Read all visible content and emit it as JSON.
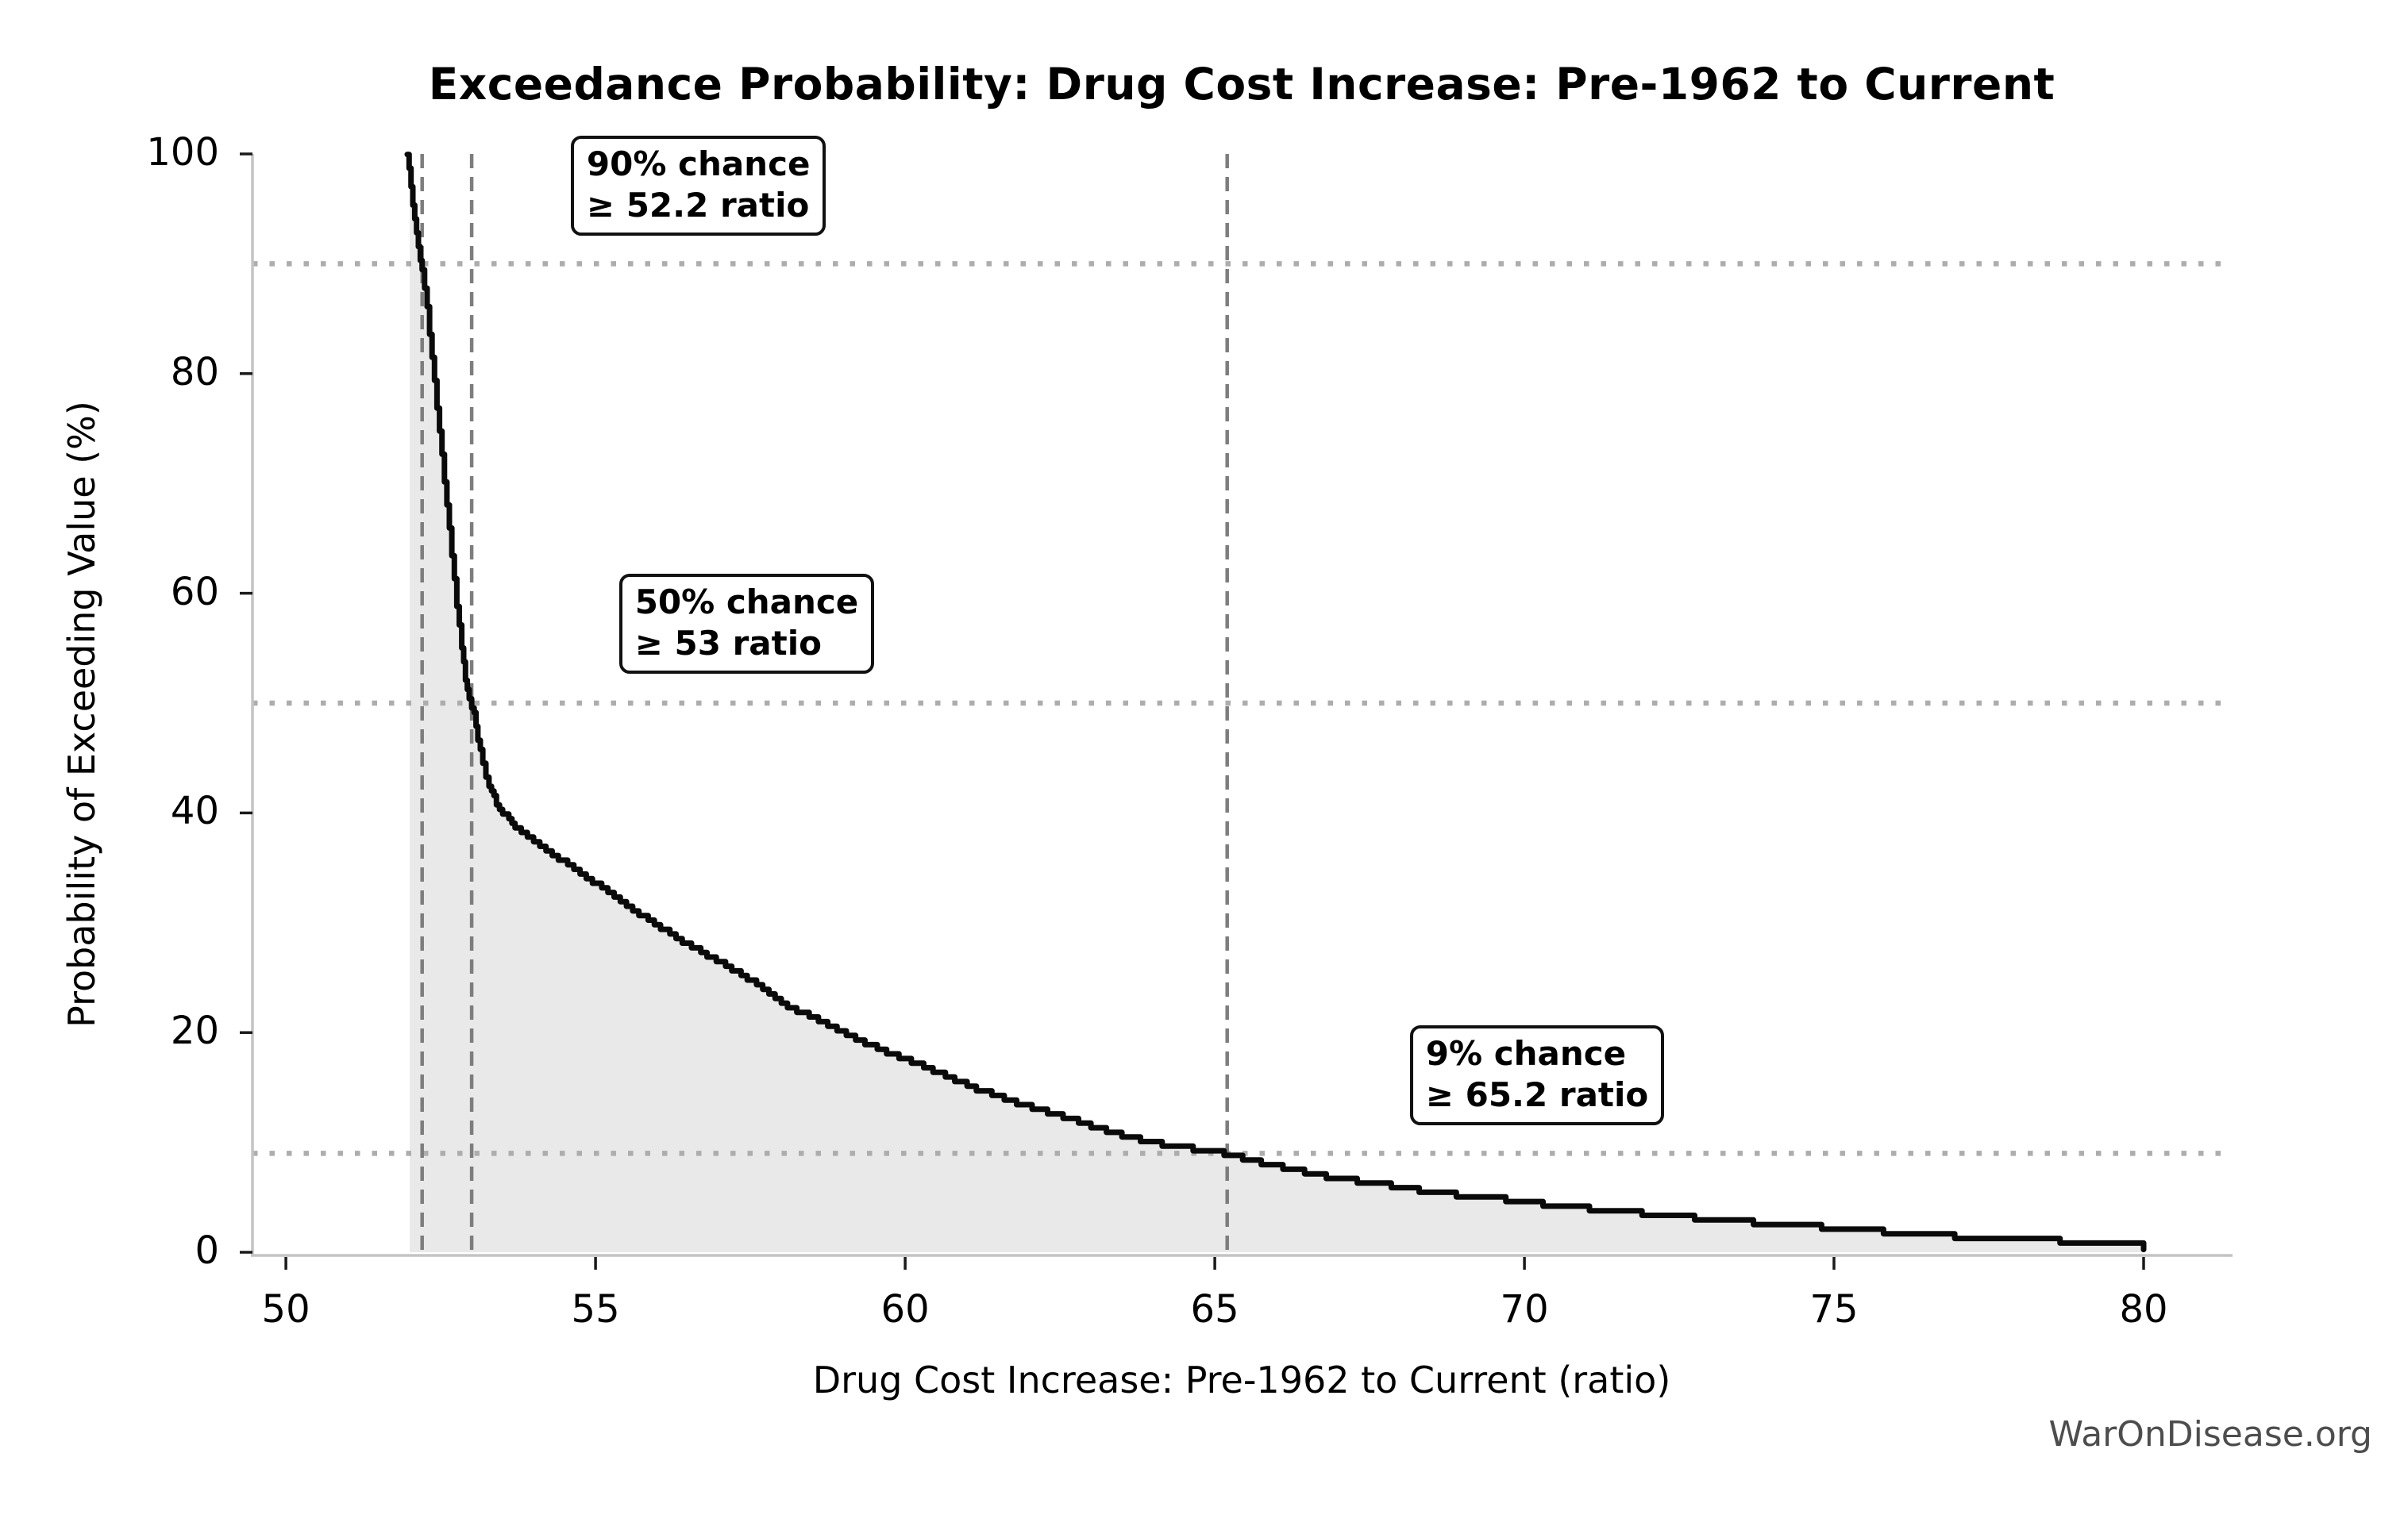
{
  "page": {
    "watermark": "WarOnDisease.org"
  },
  "chart_data": {
    "type": "area",
    "title": "Exceedance Probability: Drug Cost Increase: Pre-1962 to Current",
    "xlabel": "Drug Cost Increase: Pre-1962 to Current (ratio)",
    "ylabel": "Probability of Exceeding Value (%)",
    "xlim": [
      49.46,
      81.41
    ],
    "ylim": [
      0,
      100
    ],
    "xticks": [
      50,
      55,
      60,
      65,
      70,
      75,
      80
    ],
    "yticks": [
      0,
      20,
      40,
      60,
      80,
      100
    ],
    "grid": {
      "horizontal_dotted_at_percent": [
        90,
        50,
        9
      ]
    },
    "vertical_dashed_at_ratio": [
      52.2,
      53,
      65.2
    ],
    "legend": "none",
    "series": [
      {
        "name": "exceedance_probability",
        "x_units": "ratio",
        "y_units": "percent",
        "fill_to_zero": true,
        "fill_left_edge_ratio": 52.0,
        "points": [
          [
            51.96,
            100
          ],
          [
            52.02,
            97
          ],
          [
            52.08,
            94
          ],
          [
            52.14,
            91.5
          ],
          [
            52.2,
            89.5
          ],
          [
            52.28,
            86
          ],
          [
            52.36,
            81.5
          ],
          [
            52.44,
            77
          ],
          [
            52.52,
            72.5
          ],
          [
            52.6,
            68
          ],
          [
            52.68,
            63.5
          ],
          [
            52.76,
            59
          ],
          [
            52.84,
            55
          ],
          [
            52.9,
            52.2
          ],
          [
            52.96,
            50.5
          ],
          [
            53.04,
            49
          ],
          [
            53.1,
            46.8
          ],
          [
            53.18,
            44.4
          ],
          [
            53.28,
            42.4
          ],
          [
            53.4,
            40.9
          ],
          [
            53.55,
            39.7
          ],
          [
            53.7,
            38.8
          ],
          [
            53.9,
            37.9
          ],
          [
            54.1,
            37.1
          ],
          [
            54.35,
            36.1
          ],
          [
            54.6,
            35.1
          ],
          [
            54.85,
            34.2
          ],
          [
            55.1,
            33.2
          ],
          [
            55.35,
            32.2
          ],
          [
            55.6,
            31.2
          ],
          [
            55.85,
            30.3
          ],
          [
            56.1,
            29.4
          ],
          [
            56.35,
            28.5
          ],
          [
            56.6,
            27.7
          ],
          [
            56.85,
            26.9
          ],
          [
            57.1,
            26.1
          ],
          [
            57.35,
            25.3
          ],
          [
            57.6,
            24.5
          ],
          [
            57.85,
            23.5
          ],
          [
            58.1,
            22.4
          ],
          [
            58.35,
            21.8
          ],
          [
            58.6,
            21.1
          ],
          [
            58.85,
            20.4
          ],
          [
            59.1,
            19.7
          ],
          [
            59.35,
            19.1
          ],
          [
            59.6,
            18.5
          ],
          [
            59.85,
            17.9
          ],
          [
            60.1,
            17.4
          ],
          [
            60.35,
            16.8
          ],
          [
            60.6,
            16.2
          ],
          [
            60.85,
            15.6
          ],
          [
            61.1,
            15.0
          ],
          [
            61.35,
            14.5
          ],
          [
            61.6,
            14.0
          ],
          [
            61.85,
            13.5
          ],
          [
            62.1,
            13.1
          ],
          [
            62.35,
            12.7
          ],
          [
            62.6,
            12.3
          ],
          [
            62.85,
            11.8
          ],
          [
            63.1,
            11.3
          ],
          [
            63.35,
            10.9
          ],
          [
            63.6,
            10.5
          ],
          [
            63.85,
            10.2
          ],
          [
            64.1,
            9.9
          ],
          [
            64.35,
            9.65
          ],
          [
            64.6,
            9.45
          ],
          [
            64.85,
            9.2
          ],
          [
            65.2,
            9.0
          ],
          [
            65.45,
            8.6
          ],
          [
            65.7,
            8.2
          ],
          [
            65.95,
            7.9
          ],
          [
            66.2,
            7.6
          ],
          [
            66.45,
            7.3
          ],
          [
            66.7,
            7.0
          ],
          [
            66.95,
            6.75
          ],
          [
            67.2,
            6.55
          ],
          [
            67.45,
            6.35
          ],
          [
            67.7,
            6.15
          ],
          [
            67.95,
            6.0
          ],
          [
            68.2,
            5.75
          ],
          [
            68.45,
            5.5
          ],
          [
            68.7,
            5.35
          ],
          [
            68.95,
            5.2
          ],
          [
            69.3,
            5.0
          ],
          [
            69.65,
            4.85
          ],
          [
            70.0,
            4.6
          ],
          [
            70.4,
            4.3
          ],
          [
            70.8,
            4.1
          ],
          [
            71.2,
            3.9
          ],
          [
            71.6,
            3.7
          ],
          [
            72.0,
            3.5
          ],
          [
            72.4,
            3.3
          ],
          [
            72.8,
            3.1
          ],
          [
            73.2,
            2.9
          ],
          [
            73.6,
            2.75
          ],
          [
            74.0,
            2.6
          ],
          [
            74.4,
            2.45
          ],
          [
            74.8,
            2.3
          ],
          [
            75.2,
            2.1
          ],
          [
            75.6,
            1.95
          ],
          [
            76.0,
            1.8
          ],
          [
            76.4,
            1.65
          ],
          [
            76.8,
            1.5
          ],
          [
            77.2,
            1.4
          ],
          [
            77.6,
            1.3
          ],
          [
            78.0,
            1.2
          ],
          [
            78.4,
            1.1
          ],
          [
            78.8,
            1.0
          ],
          [
            79.2,
            0.95
          ],
          [
            79.6,
            0.9
          ],
          [
            80.0,
            0.85
          ],
          [
            80.0,
            0.25
          ]
        ]
      }
    ],
    "annotations": [
      {
        "lines": [
          "90% chance",
          "≥ 52.2 ratio"
        ],
        "x": 54.6,
        "p": 101.7
      },
      {
        "lines": [
          "50% chance",
          "≥ 53 ratio"
        ],
        "x": 55.38,
        "p": 61.8
      },
      {
        "lines": [
          "9% chance",
          "≥ 65.2 ratio"
        ],
        "x": 68.15,
        "p": 20.7
      }
    ],
    "colors": {
      "curve": "#0a0a0a",
      "fill": "#e9e9e9",
      "dashed_line": "#7d7d7d",
      "dotted_line": "#adadad",
      "spine": "#c4c4c4",
      "tick": "#1a1a1a",
      "text": "#000000",
      "watermark": "#4d4d4d"
    }
  }
}
